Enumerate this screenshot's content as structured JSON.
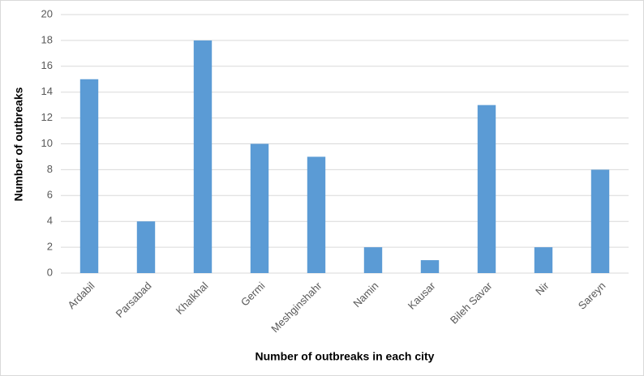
{
  "chart_data": {
    "type": "bar",
    "x_label": "Number of outbreaks in each city",
    "y_label": "Number of outbreaks",
    "categories": [
      "Ardabil",
      "Parsabad",
      "Khalkhal",
      "Germi",
      "Meshginshahr",
      "Namin",
      "Kausar",
      "Bileh Savar",
      "Nir",
      "Sareyn"
    ],
    "values": [
      15,
      4,
      18,
      10,
      9,
      2,
      1,
      13,
      2,
      8
    ],
    "color": "#5b9bd5",
    "ylim": [
      0,
      20
    ],
    "yticks": [
      0,
      2,
      4,
      6,
      8,
      10,
      12,
      14,
      16,
      18,
      20
    ],
    "grid": true
  }
}
